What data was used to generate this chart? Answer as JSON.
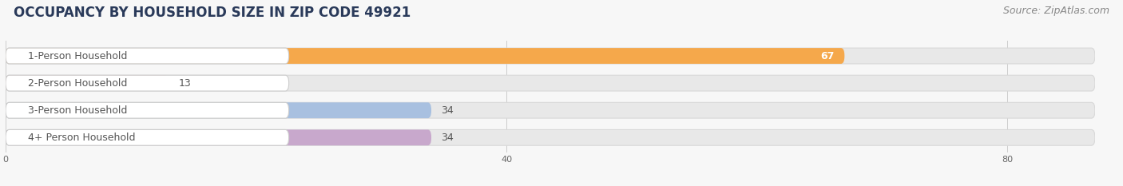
{
  "title": "OCCUPANCY BY HOUSEHOLD SIZE IN ZIP CODE 49921",
  "source": "Source: ZipAtlas.com",
  "categories": [
    "1-Person Household",
    "2-Person Household",
    "3-Person Household",
    "4+ Person Household"
  ],
  "values": [
    67,
    13,
    34,
    34
  ],
  "bar_colors": [
    "#F5A84B",
    "#F0A8AE",
    "#A8C0E0",
    "#C8A8CC"
  ],
  "value_label_color": [
    "#ffffff",
    "#555555",
    "#555555",
    "#555555"
  ],
  "xlim": [
    0,
    87
  ],
  "xticks": [
    0,
    40,
    80
  ],
  "background_color": "#f7f7f7",
  "bar_bg_color": "#e8e8e8",
  "bar_bg_edge_color": "#d8d8d8",
  "title_fontsize": 12,
  "source_fontsize": 9,
  "label_fontsize": 9,
  "value_fontsize": 9,
  "title_color": "#2a3a5a",
  "label_box_color": "#ffffff",
  "label_text_color": "#555555"
}
